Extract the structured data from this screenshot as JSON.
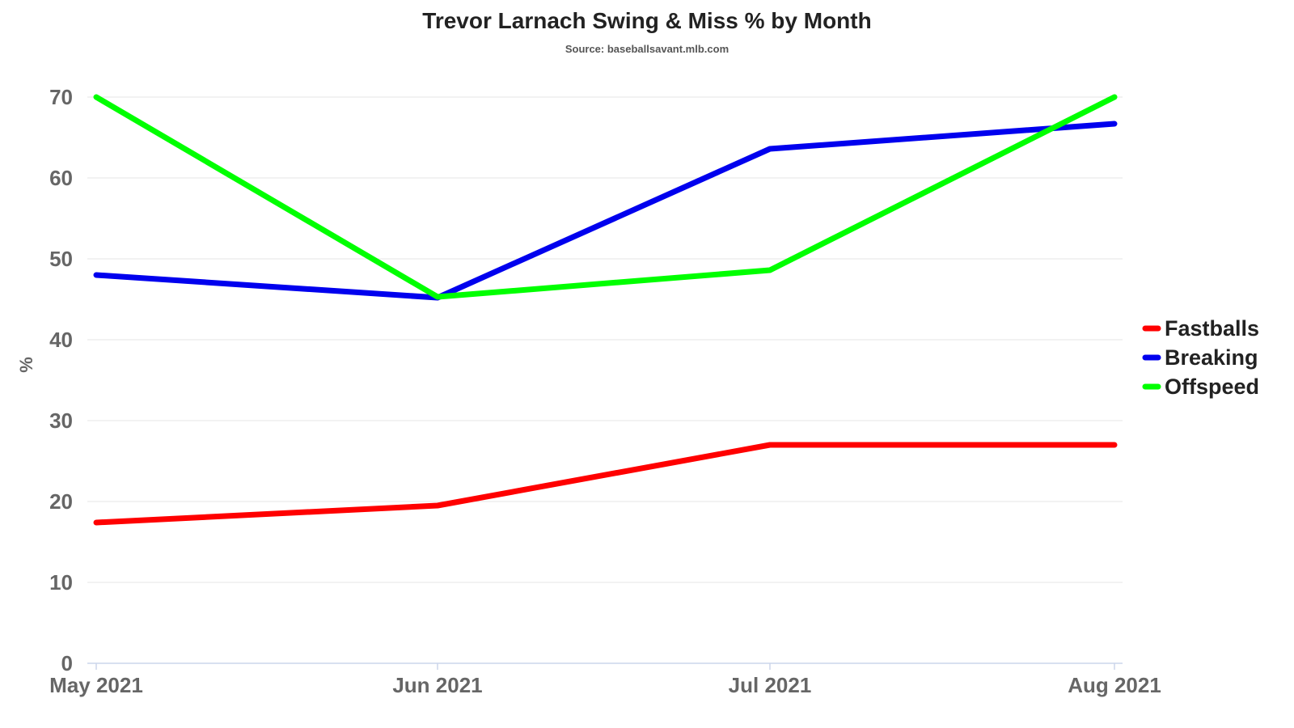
{
  "chart_data": {
    "type": "line",
    "title": "Trevor Larnach Swing & Miss % by Month",
    "subtitle": "Source: baseballsavant.mlb.com",
    "xlabel": "",
    "ylabel": "%",
    "categories": [
      "May 2021",
      "Jun 2021",
      "Jul 2021",
      "Aug 2021"
    ],
    "ylim": [
      0,
      70
    ],
    "yticks": [
      0,
      10,
      20,
      30,
      40,
      50,
      60,
      70
    ],
    "grid": true,
    "legend_position": "right",
    "series": [
      {
        "name": "Fastballs",
        "color": "#ff0000",
        "values": [
          17.4,
          19.5,
          27.0,
          27.0
        ]
      },
      {
        "name": "Breaking",
        "color": "#0000ee",
        "values": [
          48.0,
          45.2,
          63.6,
          66.7
        ]
      },
      {
        "name": "Offspeed",
        "color": "#00ff00",
        "values": [
          70.0,
          45.3,
          48.6,
          70.0
        ]
      }
    ]
  }
}
